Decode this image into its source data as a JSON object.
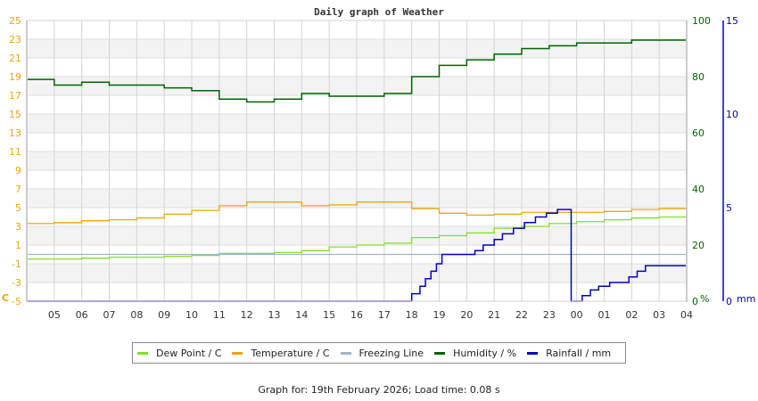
{
  "chart_data": {
    "type": "line",
    "title": "Daily graph of Weather",
    "xlabel": "",
    "x_ticks": [
      "05",
      "06",
      "07",
      "08",
      "09",
      "10",
      "11",
      "12",
      "13",
      "14",
      "15",
      "16",
      "17",
      "18",
      "19",
      "20",
      "21",
      "22",
      "23",
      "00",
      "01",
      "02",
      "03",
      "04"
    ],
    "axes": {
      "left": {
        "label": "C",
        "ylim": [
          -5,
          25
        ],
        "ticks": [
          -5,
          -3,
          -1,
          1,
          3,
          5,
          7,
          9,
          11,
          13,
          15,
          17,
          19,
          21,
          23,
          25
        ],
        "color": "#f0a30a"
      },
      "right_humidity": {
        "label": "%",
        "ylim": [
          0,
          100
        ],
        "ticks": [
          0,
          20,
          40,
          60,
          80,
          100
        ],
        "color": "#006400"
      },
      "right_rainfall": {
        "label": "mm",
        "ylim": [
          0,
          15
        ],
        "ticks": [
          0,
          5,
          10,
          15
        ],
        "color": "#0000c8"
      }
    },
    "grid": true,
    "legend_position": "bottom",
    "x_hours": [
      4.0,
      5,
      6,
      7,
      8,
      9,
      10,
      11,
      12,
      13,
      14,
      15,
      16,
      17,
      18,
      19,
      20,
      21,
      22,
      23,
      24,
      25,
      26,
      27,
      28
    ],
    "series": [
      {
        "name": "Dew Point / C",
        "color": "#7fe020",
        "axis": "left",
        "values": [
          -0.5,
          -0.5,
          -0.4,
          -0.3,
          -0.3,
          -0.2,
          -0.1,
          0.1,
          0.1,
          0.2,
          0.4,
          0.8,
          1.0,
          1.2,
          1.8,
          2.0,
          2.3,
          2.8,
          3.0,
          3.3,
          3.5,
          3.7,
          3.9,
          4.0,
          4.1
        ]
      },
      {
        "name": "Temperature / C",
        "color": "#f0a30a",
        "axis": "left",
        "values": [
          3.3,
          3.4,
          3.6,
          3.7,
          3.9,
          4.3,
          4.7,
          5.2,
          5.6,
          5.6,
          5.2,
          5.3,
          5.6,
          5.6,
          4.9,
          4.4,
          4.2,
          4.3,
          4.5,
          4.5,
          4.5,
          4.6,
          4.8,
          4.9,
          5.0
        ]
      },
      {
        "name": "Freezing Line",
        "color": "#a0b4c8",
        "axis": "left",
        "values": [
          0,
          0,
          0,
          0,
          0,
          0,
          0,
          0,
          0,
          0,
          0,
          0,
          0,
          0,
          0,
          0,
          0,
          0,
          0,
          0,
          0,
          0,
          0,
          0,
          0
        ]
      },
      {
        "name": "Humidity / %",
        "color": "#006400",
        "axis": "right_humidity",
        "values": [
          79,
          77,
          78,
          77,
          77,
          76,
          75,
          72,
          71,
          72,
          74,
          73,
          73,
          74,
          80,
          84,
          86,
          88,
          90,
          91,
          92,
          92,
          93,
          93,
          93
        ]
      },
      {
        "name": "Rainfall / mm",
        "color": "#0000c8",
        "axis": "right_rainfall",
        "values": [
          0,
          0,
          0,
          0,
          0,
          0,
          0,
          0,
          0,
          0,
          0,
          0,
          0,
          0,
          0,
          1.8,
          2.5,
          3.1,
          3.9,
          4.7,
          0.2,
          1.0,
          1.6,
          1.9,
          1.9
        ]
      }
    ]
  },
  "legend": {
    "items": [
      {
        "label": "Dew Point / C",
        "color": "#7fe020"
      },
      {
        "label": "Temperature / C",
        "color": "#f0a30a"
      },
      {
        "label": "Freezing Line",
        "color": "#a0b4c8"
      },
      {
        "label": "Humidity / %",
        "color": "#006400"
      },
      {
        "label": "Rainfall / mm",
        "color": "#0000c8"
      }
    ]
  },
  "footer": {
    "text": "Graph for: 19th February 2026; Load time: 0.08 s"
  }
}
